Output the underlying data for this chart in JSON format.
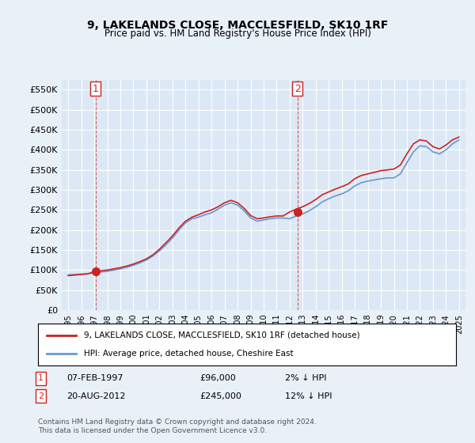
{
  "title1": "9, LAKELANDS CLOSE, MACCLESFIELD, SK10 1RF",
  "title2": "Price paid vs. HM Land Registry's House Price Index (HPI)",
  "ylabel_ticks": [
    "£0",
    "£50K",
    "£100K",
    "£150K",
    "£200K",
    "£250K",
    "£300K",
    "£350K",
    "£400K",
    "£450K",
    "£500K",
    "£550K"
  ],
  "ylim": [
    0,
    575000
  ],
  "xlim_start": 1994.5,
  "xlim_end": 2025.5,
  "bg_color": "#e8f0f8",
  "plot_bg": "#dce8f5",
  "grid_color": "#ffffff",
  "hpi_color": "#6699cc",
  "price_color": "#cc2222",
  "transaction1_date": "07-FEB-1997",
  "transaction1_price": 96000,
  "transaction1_label": "1",
  "transaction1_hpi_diff": "2% ↓ HPI",
  "transaction2_date": "20-AUG-2012",
  "transaction2_price": 245000,
  "transaction2_label": "2",
  "transaction2_hpi_diff": "12% ↓ HPI",
  "legend_line1": "9, LAKELANDS CLOSE, MACCLESFIELD, SK10 1RF (detached house)",
  "legend_line2": "HPI: Average price, detached house, Cheshire East",
  "footnote": "Contains HM Land Registry data © Crown copyright and database right 2024.\nThis data is licensed under the Open Government Licence v3.0.",
  "hpi_years": [
    1995,
    1995.5,
    1996,
    1996.5,
    1997,
    1997.5,
    1998,
    1998.5,
    1999,
    1999.5,
    2000,
    2000.5,
    2001,
    2001.5,
    2002,
    2002.5,
    2003,
    2003.5,
    2004,
    2004.5,
    2005,
    2005.5,
    2006,
    2006.5,
    2007,
    2007.5,
    2008,
    2008.5,
    2009,
    2009.5,
    2010,
    2010.5,
    2011,
    2011.5,
    2012,
    2012.5,
    2013,
    2013.5,
    2014,
    2014.5,
    2015,
    2015.5,
    2016,
    2016.5,
    2017,
    2017.5,
    2018,
    2018.5,
    2019,
    2019.5,
    2020,
    2020.5,
    2021,
    2021.5,
    2022,
    2022.5,
    2023,
    2023.5,
    2024,
    2024.5,
    2025
  ],
  "hpi_values": [
    88000,
    89000,
    90000,
    91000,
    93000,
    95000,
    97000,
    100000,
    103000,
    107000,
    112000,
    118000,
    125000,
    135000,
    148000,
    163000,
    180000,
    200000,
    218000,
    228000,
    232000,
    238000,
    243000,
    252000,
    262000,
    268000,
    262000,
    248000,
    230000,
    222000,
    225000,
    228000,
    230000,
    230000,
    228000,
    235000,
    240000,
    248000,
    258000,
    270000,
    278000,
    285000,
    290000,
    298000,
    310000,
    318000,
    322000,
    325000,
    328000,
    330000,
    330000,
    340000,
    368000,
    395000,
    410000,
    408000,
    395000,
    390000,
    400000,
    415000,
    425000
  ],
  "price_years": [
    1995,
    1995.5,
    1996,
    1996.5,
    1997,
    1997.5,
    1998,
    1998.5,
    1999,
    1999.5,
    2000,
    2000.5,
    2001,
    2001.5,
    2002,
    2002.5,
    2003,
    2003.5,
    2004,
    2004.5,
    2005,
    2005.5,
    2006,
    2006.5,
    2007,
    2007.5,
    2008,
    2008.5,
    2009,
    2009.5,
    2010,
    2010.5,
    2011,
    2011.5,
    2012,
    2012.5,
    2013,
    2013.5,
    2014,
    2014.5,
    2015,
    2015.5,
    2016,
    2016.5,
    2017,
    2017.5,
    2018,
    2018.5,
    2019,
    2019.5,
    2020,
    2020.5,
    2021,
    2021.5,
    2022,
    2022.5,
    2023,
    2023.5,
    2024,
    2024.5,
    2025
  ],
  "price_values": [
    86000,
    87500,
    89000,
    90500,
    96000,
    98000,
    100000,
    103000,
    106000,
    110000,
    115000,
    121000,
    128000,
    138000,
    152000,
    168000,
    185000,
    205000,
    222000,
    232000,
    238000,
    245000,
    250000,
    258000,
    268000,
    274000,
    268000,
    254000,
    236000,
    228000,
    230000,
    233000,
    235000,
    235000,
    245000,
    252000,
    258000,
    266000,
    276000,
    288000,
    295000,
    302000,
    308000,
    315000,
    328000,
    336000,
    340000,
    344000,
    348000,
    350000,
    352000,
    362000,
    390000,
    415000,
    425000,
    422000,
    408000,
    402000,
    412000,
    425000,
    432000
  ]
}
